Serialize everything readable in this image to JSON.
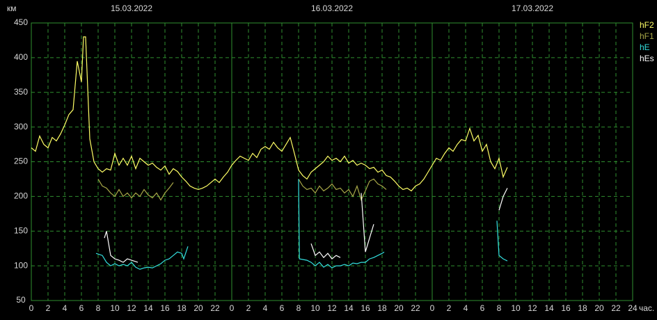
{
  "chart_data": {
    "type": "line",
    "y_label": "км",
    "x_label": "час.",
    "day_labels": [
      "15.03.2022",
      "16.03.2022",
      "17.03.2022"
    ],
    "xlim": [
      0,
      72
    ],
    "ylim": [
      50,
      450
    ],
    "yticks": [
      50,
      100,
      150,
      200,
      250,
      300,
      350,
      400,
      450
    ],
    "xticks": [
      0,
      2,
      4,
      6,
      8,
      10,
      12,
      14,
      16,
      18,
      20,
      22,
      {
        "value": 24,
        "label": "0"
      },
      {
        "value": 26,
        "label": "2"
      },
      {
        "value": 28,
        "label": "4"
      },
      {
        "value": 30,
        "label": "6"
      },
      {
        "value": 32,
        "label": "8"
      },
      {
        "value": 34,
        "label": "10"
      },
      {
        "value": 36,
        "label": "12"
      },
      {
        "value": 38,
        "label": "14"
      },
      {
        "value": 40,
        "label": "16"
      },
      {
        "value": 42,
        "label": "18"
      },
      {
        "value": 44,
        "label": "20"
      },
      {
        "value": 46,
        "label": "22"
      },
      {
        "value": 48,
        "label": "0"
      },
      {
        "value": 50,
        "label": "2"
      },
      {
        "value": 52,
        "label": "4"
      },
      {
        "value": 54,
        "label": "6"
      },
      {
        "value": 56,
        "label": "8"
      },
      {
        "value": 58,
        "label": "10"
      },
      {
        "value": 60,
        "label": "12"
      },
      {
        "value": 62,
        "label": "14"
      },
      {
        "value": 64,
        "label": "16"
      },
      {
        "value": 66,
        "label": "18"
      },
      {
        "value": 68,
        "label": "20"
      },
      {
        "value": 70,
        "label": "22"
      },
      {
        "value": 72,
        "label": "24"
      }
    ],
    "grid": true,
    "series": [
      {
        "name": "hF2",
        "color": "#ffff66",
        "x": [
          0,
          0.5,
          1,
          1.5,
          2,
          2.5,
          3,
          3.5,
          4,
          4.5,
          5,
          5.5,
          6,
          6.25,
          6.5,
          7,
          7.5,
          8,
          8.5,
          9,
          9.5,
          10,
          10.5,
          11,
          11.5,
          12,
          12.5,
          13,
          13.5,
          14,
          14.5,
          15,
          15.5,
          16,
          16.5,
          17,
          17.5,
          18,
          18.5,
          19,
          19.5,
          20,
          20.5,
          21,
          21.5,
          22,
          22.5,
          23,
          23.5,
          24,
          24.5,
          25,
          25.5,
          26,
          26.5,
          27,
          27.5,
          28,
          28.5,
          29,
          29.5,
          30,
          30.5,
          31,
          31.5,
          32,
          32.5,
          33,
          33.5,
          34,
          34.5,
          35,
          35.5,
          36,
          36.5,
          37,
          37.5,
          38,
          38.5,
          39,
          39.5,
          40,
          40.5,
          41,
          41.5,
          42,
          42.5,
          43,
          43.5,
          44,
          44.5,
          45,
          45.5,
          46,
          46.5,
          47,
          47.5,
          48,
          48.5,
          49,
          49.5,
          50,
          50.5,
          51,
          51.5,
          52,
          52.5,
          53,
          53.5,
          54,
          54.5,
          55,
          55.5,
          56,
          56.5,
          57
        ],
        "values": [
          270,
          265,
          287,
          275,
          270,
          285,
          280,
          290,
          303,
          318,
          325,
          395,
          365,
          430,
          430,
          283,
          250,
          240,
          235,
          240,
          238,
          262,
          245,
          255,
          245,
          258,
          240,
          255,
          250,
          245,
          248,
          242,
          238,
          244,
          232,
          240,
          236,
          228,
          222,
          215,
          212,
          210,
          212,
          215,
          220,
          225,
          220,
          228,
          235,
          245,
          252,
          258,
          255,
          252,
          262,
          256,
          268,
          272,
          268,
          278,
          270,
          265,
          275,
          285,
          262,
          238,
          230,
          225,
          235,
          240,
          245,
          250,
          258,
          252,
          255,
          250,
          258,
          248,
          252,
          245,
          248,
          245,
          240,
          242,
          235,
          238,
          230,
          228,
          222,
          215,
          210,
          212,
          208,
          215,
          218,
          225,
          235,
          245,
          255,
          252,
          262,
          270,
          265,
          275,
          282,
          280,
          298,
          280,
          288,
          265,
          275,
          250,
          240,
          255,
          228,
          242
        ]
      },
      {
        "name": "hF1",
        "color": "#a8a848",
        "x": [
          8,
          8.5,
          9,
          9.5,
          10,
          10.5,
          11,
          11.5,
          12,
          12.5,
          13,
          13.5,
          14,
          14.5,
          15,
          15.5,
          16,
          16.5,
          17,
          null,
          32,
          32.5,
          33,
          33.5,
          34,
          34.5,
          35,
          35.5,
          36,
          36.5,
          37,
          37.5,
          38,
          38.5,
          39,
          39.5,
          40,
          40.5,
          41,
          41.5,
          42,
          42.5
        ],
        "values": [
          225,
          215,
          212,
          205,
          200,
          210,
          200,
          205,
          198,
          205,
          200,
          210,
          202,
          198,
          205,
          195,
          205,
          212,
          220,
          null,
          225,
          215,
          210,
          212,
          205,
          215,
          208,
          212,
          218,
          210,
          212,
          205,
          210,
          200,
          215,
          195,
          208,
          222,
          225,
          218,
          215,
          210
        ]
      },
      {
        "name": "hE",
        "color": "#33e0e0",
        "x": [
          7.75,
          8.5,
          9,
          9.5,
          10,
          10.5,
          11,
          11.5,
          12,
          12.5,
          13,
          13.5,
          14,
          14.5,
          15,
          15.5,
          16,
          16.5,
          17,
          17.5,
          18,
          18.25,
          18.75,
          null,
          32,
          32.1,
          33,
          33.5,
          34,
          34.5,
          35,
          35.5,
          36,
          36.5,
          37,
          37.5,
          38,
          38.5,
          39,
          39.5,
          40,
          40.5,
          41,
          41.5,
          42,
          42.25,
          null,
          55.75,
          56,
          56.5,
          57
        ],
        "values": [
          118,
          115,
          105,
          100,
          103,
          100,
          102,
          100,
          105,
          98,
          95,
          97,
          98,
          97,
          100,
          103,
          108,
          110,
          115,
          120,
          118,
          110,
          128,
          null,
          225,
          110,
          108,
          105,
          100,
          105,
          98,
          102,
          97,
          100,
          100,
          102,
          100,
          104,
          103,
          105,
          105,
          110,
          112,
          115,
          118,
          120,
          null,
          165,
          115,
          110,
          107
        ]
      },
      {
        "name": "hEs",
        "color": "#ffffff",
        "x": [
          8.75,
          9,
          9.5,
          10,
          10.5,
          11,
          11.5,
          12,
          12.75,
          null,
          33.5,
          34,
          34.5,
          35,
          35.5,
          36,
          36.5,
          37,
          null,
          39.5,
          40,
          41,
          null,
          56,
          56.5,
          57
        ],
        "values": [
          140,
          150,
          115,
          110,
          108,
          105,
          110,
          108,
          105,
          null,
          132,
          115,
          120,
          112,
          118,
          110,
          115,
          112,
          null,
          205,
          120,
          160,
          null,
          180,
          200,
          212
        ]
      }
    ]
  }
}
